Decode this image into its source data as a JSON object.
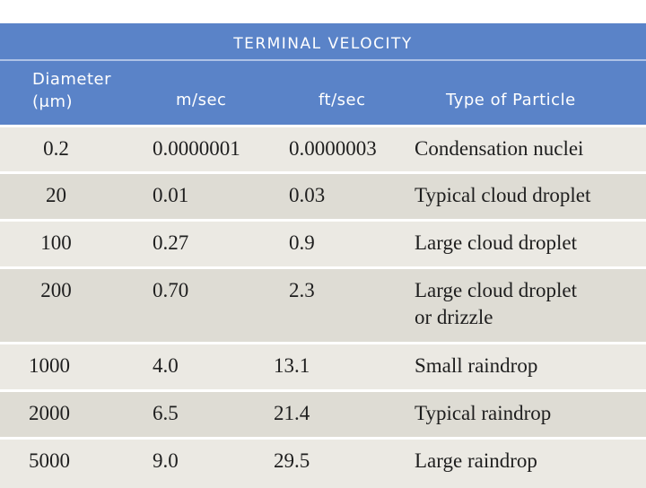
{
  "table": {
    "title": "TERMINAL VELOCITY",
    "headers": {
      "diameter_line1": "Diameter",
      "diameter_line2": "(μm)",
      "m_per_sec": "m/sec",
      "ft_per_sec": "ft/sec",
      "type": "Type of Particle"
    },
    "rows": [
      {
        "diameter": "0.2",
        "m_sec": "0.0000001",
        "ft_sec": "0.0000003",
        "type": "Condensation nuclei",
        "type2": ""
      },
      {
        "diameter": "20",
        "m_sec": "0.01",
        "ft_sec": "0.03",
        "type": "Typical cloud droplet",
        "type2": ""
      },
      {
        "diameter": "100",
        "m_sec": "0.27",
        "ft_sec": "0.9",
        "type": "Large cloud droplet",
        "type2": ""
      },
      {
        "diameter": "200",
        "m_sec": "0.70",
        "ft_sec": "2.3",
        "type": "Large cloud droplet",
        "type2": "or drizzle"
      },
      {
        "diameter": "1000",
        "m_sec": "4.0",
        "ft_sec": "13.1",
        "type": "Small raindrop",
        "type2": ""
      },
      {
        "diameter": "2000",
        "m_sec": "6.5",
        "ft_sec": "21.4",
        "type": "Typical raindrop",
        "type2": ""
      },
      {
        "diameter": "5000",
        "m_sec": "9.0",
        "ft_sec": "29.5",
        "type": "Large raindrop",
        "type2": ""
      }
    ],
    "colors": {
      "header_bg": "#5a83c8",
      "row_bg": "#e8e6df",
      "text": "#1e1e1e"
    }
  }
}
